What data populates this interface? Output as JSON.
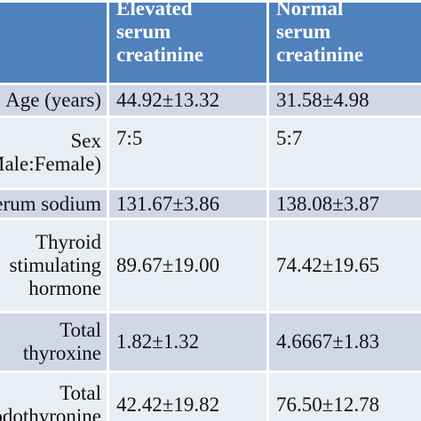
{
  "table": {
    "headers": {
      "parameter": "",
      "elevated": [
        "Elevated",
        "serum",
        "creatinine"
      ],
      "normal": [
        "Normal",
        "serum",
        "creatinine"
      ]
    },
    "rows": [
      {
        "parameter": [
          "Age (years)"
        ],
        "elevated": "44.92±13.32",
        "normal": "31.58±4.98"
      },
      {
        "parameter": [
          "Sex",
          "(Male:Female)"
        ],
        "elevated": "7:5",
        "normal": "5:7"
      },
      {
        "parameter": [
          "Serum sodium"
        ],
        "elevated": "131.67±3.86",
        "normal": "138.08±3.87"
      },
      {
        "parameter": [
          "Thyroid",
          "stimulating",
          "hormone"
        ],
        "elevated": "89.67±19.00",
        "normal": "74.42±19.65"
      },
      {
        "parameter": [
          "Total",
          "thyroxine"
        ],
        "elevated": "1.82±1.32",
        "normal": "4.6667±1.83"
      },
      {
        "parameter": [
          "Total",
          "triiodothyronine"
        ],
        "elevated": "42.42±19.82",
        "normal": "76.50±12.78"
      }
    ]
  },
  "colors": {
    "header_bg": "#4f81bd",
    "row_odd_bg": "#d0d8e8",
    "row_even_bg": "#e9edf4"
  }
}
